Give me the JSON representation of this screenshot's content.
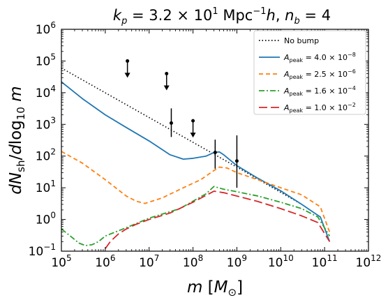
{
  "chart_data": {
    "type": "line",
    "title": "k_p = 3.2 × 10^1 Mpc^-1 h,  n_b = 4",
    "xlabel": "m [M_⊙]",
    "ylabel": "dN_sh / dlog10 m",
    "xscale": "log",
    "yscale": "log",
    "xlim": [
      100000,
      1000000000000
    ],
    "ylim": [
      0.1,
      1000000
    ],
    "x_ticks": [
      {
        "value": 100000,
        "mant": "10",
        "exp": "5"
      },
      {
        "value": 1000000,
        "mant": "10",
        "exp": "6"
      },
      {
        "value": 10000000,
        "mant": "10",
        "exp": "7"
      },
      {
        "value": 100000000,
        "mant": "10",
        "exp": "8"
      },
      {
        "value": 1000000000,
        "mant": "10",
        "exp": "9"
      },
      {
        "value": 10000000000,
        "mant": "10",
        "exp": "10"
      },
      {
        "value": 100000000000,
        "mant": "10",
        "exp": "11"
      },
      {
        "value": 1000000000000,
        "mant": "10",
        "exp": "12"
      }
    ],
    "y_ticks": [
      {
        "value": 0.1,
        "mant": "10",
        "exp": "−1"
      },
      {
        "value": 1,
        "mant": "10",
        "exp": "0"
      },
      {
        "value": 10,
        "mant": "10",
        "exp": "1"
      },
      {
        "value": 100,
        "mant": "10",
        "exp": "2"
      },
      {
        "value": 1000,
        "mant": "10",
        "exp": "3"
      },
      {
        "value": 10000,
        "mant": "10",
        "exp": "4"
      },
      {
        "value": 100000,
        "mant": "10",
        "exp": "5"
      },
      {
        "value": 1000000,
        "mant": "10",
        "exp": "6"
      }
    ],
    "legend_position": "top-right",
    "series": [
      {
        "name": "No bump",
        "color": "#000000",
        "style": "dotted",
        "x": [
          100000,
          1000000000,
          30000000000
        ],
        "y": [
          60000,
          45,
          3
        ]
      },
      {
        "name": "A_peak = 4.0 × 10^-8",
        "color": "#1f77b4",
        "style": "solid",
        "x": [
          100000,
          300000,
          1000000,
          3000000,
          10000000,
          30000000,
          60000000,
          100000000,
          200000000,
          300000000,
          400000000,
          500000000,
          1000000000,
          3000000000,
          10000000000,
          30000000000,
          80000000000,
          130000000000
        ],
        "y": [
          22000,
          6500,
          2000,
          800,
          300,
          110,
          80,
          85,
          100,
          130,
          135,
          110,
          50,
          20,
          8,
          3,
          1.2,
          0.2
        ]
      },
      {
        "name": "A_peak = 2.5 × 10^-6",
        "color": "#ff7f0e",
        "style": "dashed",
        "x": [
          100000,
          300000,
          1000000,
          3000000,
          5000000,
          8000000,
          20000000,
          60000000,
          150000000,
          300000000,
          400000000,
          600000000,
          1000000000,
          3000000000,
          10000000000,
          30000000000,
          80000000000,
          130000000000
        ],
        "y": [
          140,
          60,
          18,
          5.5,
          3.8,
          3.2,
          4.8,
          10,
          18,
          35,
          45,
          42,
          30,
          18,
          10,
          6,
          2.5,
          0.4
        ]
      },
      {
        "name": "A_peak = 1.6 × 10^-4",
        "color": "#2ca02c",
        "style": "dashdot",
        "x": [
          100000,
          170000,
          250000,
          350000,
          500000,
          700000,
          1000000,
          3000000,
          10000000,
          50000000,
          200000000,
          300000000,
          500000000,
          1000000000,
          3000000000,
          10000000000,
          30000000000,
          70000000000,
          130000000000
        ],
        "y": [
          0.5,
          0.28,
          0.18,
          0.15,
          0.16,
          0.2,
          0.3,
          0.55,
          1.1,
          2.2,
          6.5,
          11,
          9,
          7.5,
          5.5,
          3.5,
          2.2,
          1.2,
          0.3
        ]
      },
      {
        "name": "A_peak = 1.0 × 10^-2",
        "color": "#d62728",
        "style": "longdash",
        "x": [
          1000000,
          1300000,
          2000000,
          3000000,
          5000000,
          10000000,
          30000000,
          100000000,
          300000000,
          500000000,
          1000000000,
          3000000000,
          10000000000,
          30000000000,
          70000000000,
          130000000000
        ],
        "y": [
          0.12,
          0.2,
          0.35,
          0.5,
          0.7,
          1.0,
          1.6,
          3.5,
          7.8,
          7.0,
          5.5,
          3.7,
          2.2,
          1.3,
          0.8,
          0.2
        ]
      }
    ],
    "observations": [
      {
        "x": 3200000,
        "y": 100000,
        "type": "upper_limit"
      },
      {
        "x": 25000000,
        "y": 40000,
        "type": "upper_limit"
      },
      {
        "x": 32000000,
        "y": 1100,
        "yerr": [
          400,
          3200
        ],
        "type": "errorbar"
      },
      {
        "x": 100000000,
        "y": 1300,
        "type": "upper_limit"
      },
      {
        "x": 320000000,
        "y": 130,
        "yerr": [
          40,
          330
        ],
        "type": "errorbar"
      },
      {
        "x": 1000000000,
        "y": 70,
        "yerr": [
          10,
          450
        ],
        "type": "errorbar"
      }
    ]
  }
}
